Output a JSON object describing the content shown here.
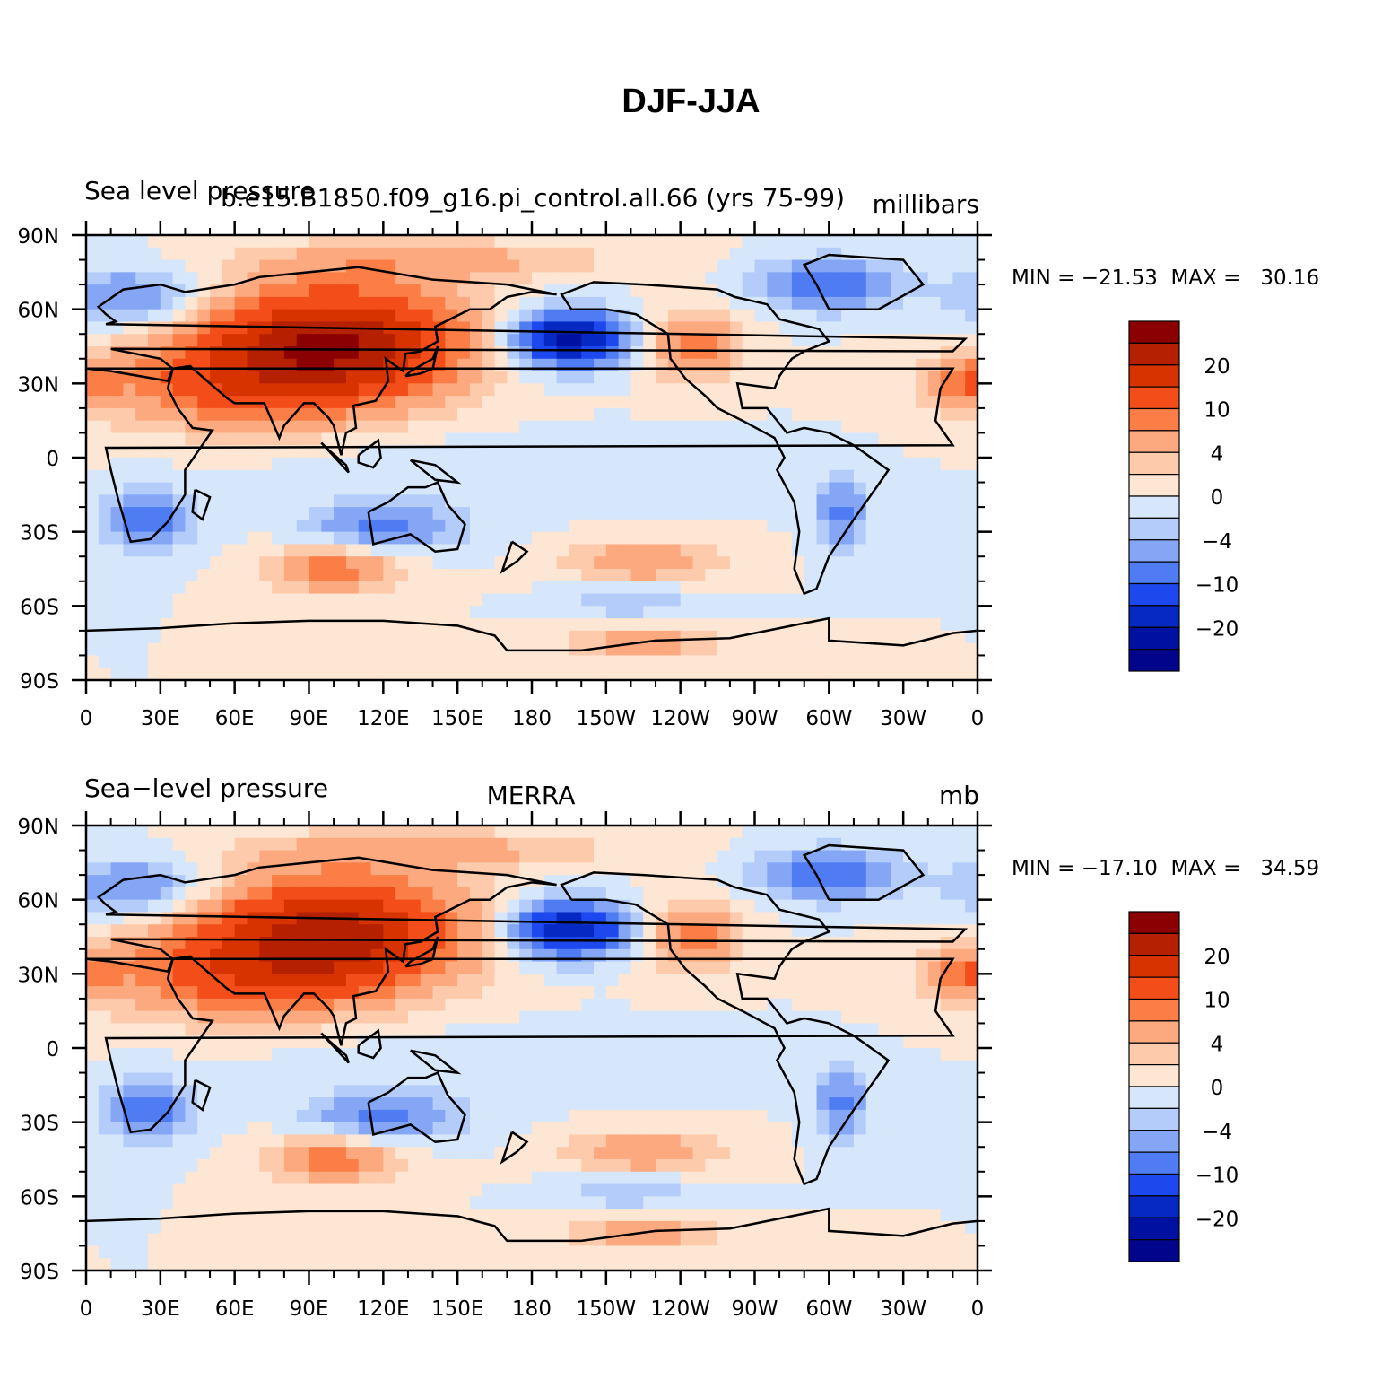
{
  "title": "DJF-JJA",
  "lat_ticks": [
    "90N",
    "60N",
    "30N",
    "0",
    "30S",
    "60S",
    "90S"
  ],
  "lon_ticks": [
    "0",
    "30E",
    "60E",
    "90E",
    "120E",
    "150E",
    "180",
    "150W",
    "120W",
    "90W",
    "60W",
    "30W",
    "0"
  ],
  "colorbar": {
    "tick_labels": [
      "20",
      "10",
      "4",
      "0",
      "−4",
      "−10",
      "−20"
    ],
    "colors": [
      "#8b0000",
      "#b52000",
      "#d63300",
      "#f34d1a",
      "#fa7e45",
      "#fca97f",
      "#fdcbac",
      "#fde6d3",
      "#d7e7fb",
      "#b3ccf9",
      "#84a6f5",
      "#4f7cf2",
      "#1d48ee",
      "#0629c4",
      "#0010a0",
      "#00058a"
    ]
  },
  "panels": [
    {
      "left_title": "Sea level pressure",
      "center_title": "b.e15.B1850.f09_g16.pi_control.all.66 (yrs 75-99)",
      "right_title": "millibars",
      "minmax": "MIN = −21.53  MAX =   30.16",
      "min": -21.53,
      "max": 30.16
    },
    {
      "left_title": "Sea−level pressure",
      "center_title": "MERRA",
      "right_title": "mb",
      "minmax": "MIN = −17.10  MAX =   34.59",
      "min": -17.1,
      "max": 34.59
    }
  ]
}
